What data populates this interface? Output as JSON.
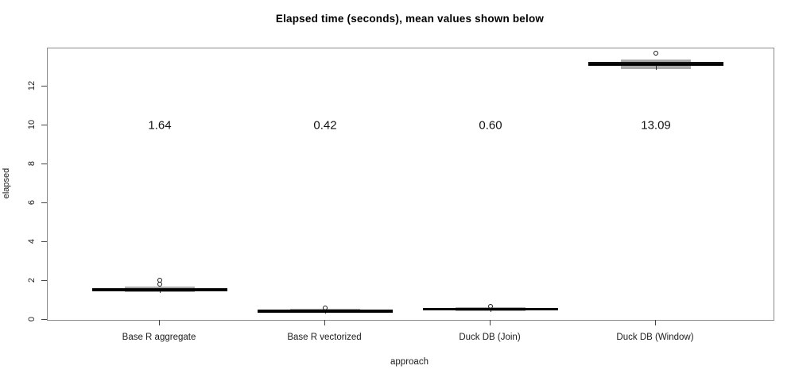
{
  "title": "Elapsed time (seconds), mean values shown below",
  "chart_data": {
    "type": "boxplot",
    "title": "Elapsed time (seconds), mean values shown below",
    "xlabel": "approach",
    "ylabel": "elapsed",
    "categories": [
      "Base R aggregate",
      "Base R vectorized",
      "Duck DB (Join)",
      "Duck DB (Window)"
    ],
    "mean_labels": [
      "1.64",
      "0.42",
      "0.60",
      "13.09"
    ],
    "means": [
      1.64,
      0.42,
      0.6,
      13.09
    ],
    "mean_label_data_y": 10,
    "yticks": [
      0,
      2,
      4,
      6,
      8,
      10,
      12
    ],
    "ylim": [
      0,
      13.96
    ],
    "grid": false,
    "legend": null,
    "series": [
      {
        "name": "Base R aggregate",
        "median": 1.55,
        "q1": 1.47,
        "q3": 1.63,
        "whisker_low": 1.43,
        "whisker_high": 1.72,
        "outliers": [
          1.82,
          2.05
        ],
        "mean": 1.64
      },
      {
        "name": "Base R vectorized",
        "median": 0.45,
        "q1": 0.41,
        "q3": 0.53,
        "whisker_low": 0.38,
        "whisker_high": 0.56,
        "outliers": [
          0.61
        ],
        "mean": 0.42
      },
      {
        "name": "Duck DB (Join)",
        "median": 0.57,
        "q1": 0.49,
        "q3": 0.63,
        "whisker_low": 0.45,
        "whisker_high": 0.67,
        "outliers": [
          0.69
        ],
        "mean": 0.6
      },
      {
        "name": "Duck DB (Window)",
        "median": 13.16,
        "q1": 13.06,
        "q3": 13.27,
        "whisker_low": 12.9,
        "whisker_high": 13.39,
        "outliers": [
          13.71
        ],
        "mean": 13.09
      }
    ]
  }
}
